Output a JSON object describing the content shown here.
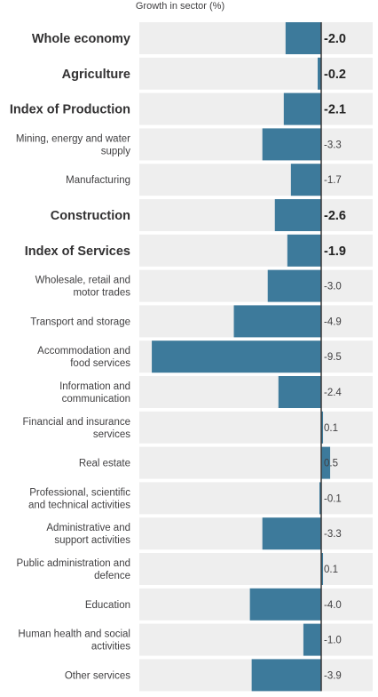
{
  "chart_data": {
    "type": "bar",
    "orientation": "horizontal",
    "axis_title": "Growth in sector (%)",
    "xlim": [
      -10.2,
      2.9
    ],
    "grid": false,
    "colors": {
      "bar": "#3d7a9b",
      "row_background": "#eeeeee",
      "zero_line": "#3a3a3a"
    },
    "rows": [
      {
        "category": "Whole economy",
        "value": -2.0,
        "label": "-2.0",
        "bold": true
      },
      {
        "category": "Agriculture",
        "value": -0.2,
        "label": "-0.2",
        "bold": true
      },
      {
        "category": "Index of Production",
        "value": -2.1,
        "label": "-2.1",
        "bold": true
      },
      {
        "category": "Mining, energy and water supply",
        "lines": [
          "Mining, energy and water",
          "supply"
        ],
        "value": -3.3,
        "label": "-3.3",
        "bold": false
      },
      {
        "category": "Manufacturing",
        "value": -1.7,
        "label": "-1.7",
        "bold": false
      },
      {
        "category": "Construction",
        "value": -2.6,
        "label": "-2.6",
        "bold": true
      },
      {
        "category": "Index of Services",
        "value": -1.9,
        "label": "-1.9",
        "bold": true
      },
      {
        "category": "Wholesale, retail and motor trades",
        "lines": [
          "Wholesale, retail and",
          "motor trades"
        ],
        "value": -3.0,
        "label": "-3.0",
        "bold": false
      },
      {
        "category": "Transport and storage",
        "value": -4.9,
        "label": "-4.9",
        "bold": false
      },
      {
        "category": "Accommodation and food services",
        "lines": [
          "Accommodation and",
          "food services"
        ],
        "value": -9.5,
        "label": "-9.5",
        "bold": false
      },
      {
        "category": "Information and communication",
        "lines": [
          "Information and",
          "communication"
        ],
        "value": -2.4,
        "label": "-2.4",
        "bold": false
      },
      {
        "category": "Financial and insurance services",
        "lines": [
          "Financial and insurance",
          "services"
        ],
        "value": 0.1,
        "label": "0.1",
        "bold": false
      },
      {
        "category": "Real estate",
        "value": 0.5,
        "label": "0.5",
        "bold": false
      },
      {
        "category": "Professional, scientific and technical activities",
        "lines": [
          "Professional, scientific",
          "and technical activities"
        ],
        "value": -0.1,
        "label": "-0.1",
        "bold": false
      },
      {
        "category": "Administrative and support activities",
        "lines": [
          "Administrative and",
          "support activities"
        ],
        "value": -3.3,
        "label": "-3.3",
        "bold": false
      },
      {
        "category": "Public administration and defence",
        "lines": [
          "Public administration and",
          "defence"
        ],
        "value": 0.1,
        "label": "0.1",
        "bold": false
      },
      {
        "category": "Education",
        "value": -4.0,
        "label": "-4.0",
        "bold": false
      },
      {
        "category": "Human health and social activities",
        "lines": [
          "Human health and social",
          "activities"
        ],
        "value": -1.0,
        "label": "-1.0",
        "bold": false
      },
      {
        "category": "Other services",
        "value": -3.9,
        "label": "-3.9",
        "bold": false
      }
    ]
  }
}
